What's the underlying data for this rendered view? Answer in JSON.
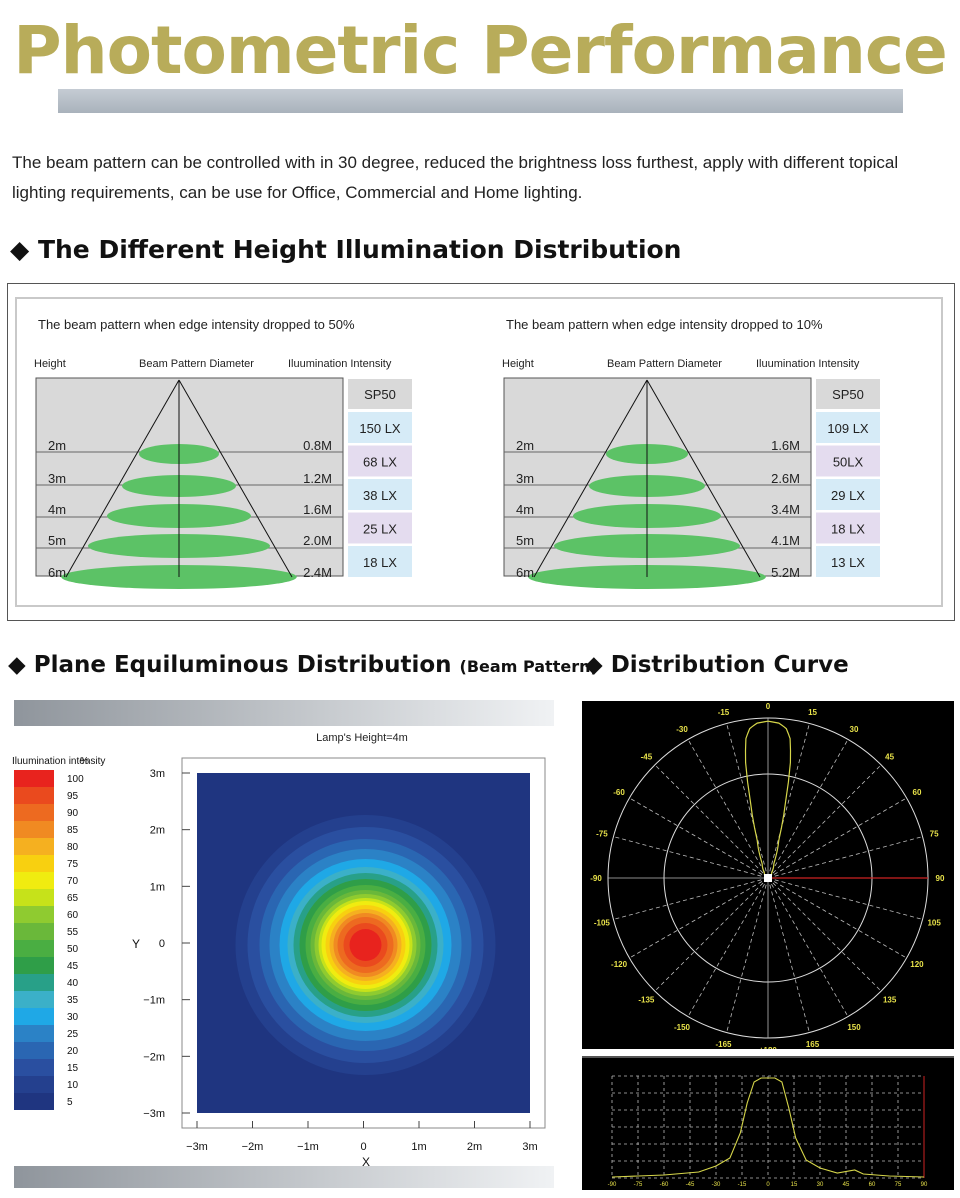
{
  "page": {
    "title": "Photometric Performance",
    "intro": "The beam pattern can be controlled with in 30 degree, reduced the brightness loss furthest, apply with different topical lighting requirements, can be use for Office, Commercial and Home lighting."
  },
  "sections": {
    "height": "The Different Height Illumination Distribution",
    "plane": "Plane Equiluminous Distribution",
    "plane_suffix": "(Beam Pattern)",
    "curve": "Distribution Curve"
  },
  "height_tables": [
    {
      "caption": "The beam pattern when edge intensity dropped to 50%",
      "col_height": "Height",
      "col_diameter": "Beam Pattern Diameter",
      "col_intensity": "Iluumination Intensity",
      "model": "SP50",
      "rows": [
        {
          "height": "2m",
          "diameter": "0.8M",
          "lux": "150 LX"
        },
        {
          "height": "3m",
          "diameter": "1.2M",
          "lux": "68 LX"
        },
        {
          "height": "4m",
          "diameter": "1.6M",
          "lux": "38 LX"
        },
        {
          "height": "5m",
          "diameter": "2.0M",
          "lux": "25 LX"
        },
        {
          "height": "6m",
          "diameter": "2.4M",
          "lux": "18 LX"
        }
      ]
    },
    {
      "caption": "The beam pattern when edge intensity dropped to 10%",
      "col_height": "Height",
      "col_diameter": "Beam Pattern Diameter",
      "col_intensity": "Iluumination Intensity",
      "model": "SP50",
      "rows": [
        {
          "height": "2m",
          "diameter": "1.6M",
          "lux": "109 LX"
        },
        {
          "height": "3m",
          "diameter": "2.6M",
          "lux": "50LX"
        },
        {
          "height": "4m",
          "diameter": "3.4M",
          "lux": "29 LX"
        },
        {
          "height": "5m",
          "diameter": "4.1M",
          "lux": "18 LX"
        },
        {
          "height": "6m",
          "diameter": "5.2M",
          "lux": "13 LX"
        }
      ]
    }
  ],
  "plane": {
    "legend_title": "Iluumination intensity",
    "legend_unit": "%",
    "legend_levels": [
      "100",
      "95",
      "90",
      "85",
      "80",
      "75",
      "70",
      "65",
      "60",
      "55",
      "50",
      "45",
      "40",
      "35",
      "30",
      "25",
      "20",
      "15",
      "10",
      "5"
    ],
    "legend_colors": [
      "#e8231e",
      "#ea4a1e",
      "#ed6a20",
      "#f08a22",
      "#f5b020",
      "#f8d010",
      "#f0ec10",
      "#c6e21a",
      "#8fcb30",
      "#6ab83a",
      "#4aae42",
      "#2f9e48",
      "#28a088",
      "#3bb0c8",
      "#1fa8e6",
      "#2b82c6",
      "#2a66b2",
      "#2a4fa0",
      "#24408e",
      "#1f3580"
    ],
    "heading": "Lamp's Height=4m",
    "y_label": "Y",
    "x_label": "X",
    "y_ticks": [
      "3m",
      "2m",
      "1m",
      "0",
      "−1m",
      "−2m",
      "−3m"
    ],
    "x_ticks": [
      "−3m",
      "−2m",
      "−1m",
      "0",
      "1m",
      "2m",
      "3m"
    ]
  },
  "polar": {
    "angles_left": [
      "-15",
      "-30",
      "-45",
      "-60",
      "-75",
      "-90",
      "-105",
      "-120",
      "-135",
      "-150",
      "-165"
    ],
    "angles_right": [
      "15",
      "30",
      "45",
      "60",
      "75",
      "90",
      "105",
      "120",
      "135",
      "150",
      "165"
    ],
    "top": "0",
    "bottom": "±180"
  },
  "curve_axis": [
    "-90",
    "-75",
    "-60",
    "-45",
    "-30",
    "-15",
    "0",
    "15",
    "30",
    "45",
    "60",
    "75",
    "90"
  ],
  "colors": {
    "title_gold": "#b8ac5a",
    "lux_blue": "#d6ebf7",
    "lux_purple": "#e4dcef",
    "green_beam": "#5cc266",
    "polar_curve": "#d6d64a"
  }
}
